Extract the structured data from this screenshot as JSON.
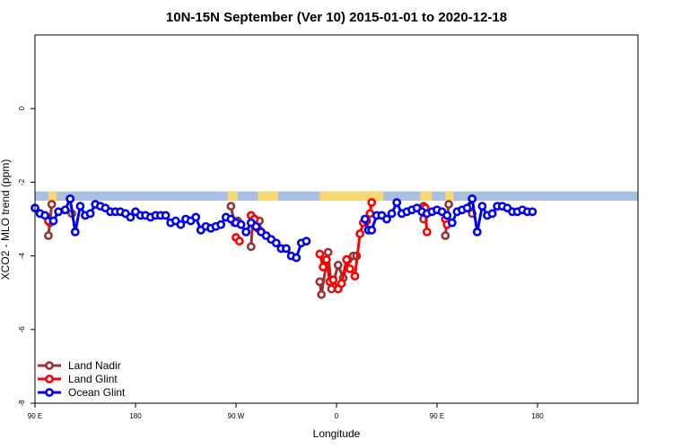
{
  "chart_data": {
    "type": "line",
    "title": "10N-15N September (Ver 10)   2015-01-01 to 2020-12-18",
    "xlabel": "Longitude",
    "ylabel": "XCO2 - MLO trend (ppm)",
    "xlim": [
      -60,
      300
    ],
    "ylim": [
      -8,
      2
    ],
    "x_ticks": [
      {
        "value": -60,
        "label": "90 E"
      },
      {
        "value": 0,
        "label": "180"
      },
      {
        "value": 60,
        "label": "90 W"
      },
      {
        "value": 120,
        "label": "0"
      },
      {
        "value": 180,
        "label": "90 E"
      },
      {
        "value": 240,
        "label": "180"
      }
    ],
    "y_ticks": [
      {
        "value": 0,
        "label": "0"
      },
      {
        "value": -2,
        "label": "-2"
      },
      {
        "value": -4,
        "label": "-4"
      },
      {
        "value": -6,
        "label": "-6"
      },
      {
        "value": -8,
        "label": "-8"
      }
    ],
    "legend_position": "bottom-left",
    "land_mask_band": {
      "y_range": [
        -2.5,
        -2.25
      ],
      "ocean_color": "#a9bfe2",
      "land_color": "#f7d774",
      "land_x": [
        [
          -52,
          -47
        ],
        [
          55,
          61
        ],
        [
          73,
          85
        ],
        [
          110,
          148
        ],
        [
          170,
          177
        ],
        [
          185,
          190
        ]
      ]
    },
    "series": [
      {
        "name": "Land Nadir",
        "color": "#993333",
        "segments": [
          [
            [
              -51,
              -3.1
            ],
            [
              -52,
              -3.45
            ],
            [
              -50,
              -2.6
            ]
          ],
          [
            [
              -38,
              -2.85
            ]
          ],
          [
            [
              57,
              -2.65
            ],
            [
              59,
              -3.1
            ],
            [
              61,
              -3.05
            ]
          ],
          [
            [
              69,
              -3.75
            ],
            [
              70,
              -3.05
            ],
            [
              74,
              -3.05
            ]
          ],
          [
            [
              110,
              -4.7
            ],
            [
              111,
              -5.05
            ],
            [
              115,
              -3.9
            ],
            [
              117,
              -4.9
            ],
            [
              121,
              -4.25
            ],
            [
              124,
              -4.6
            ],
            [
              127,
              -4.1
            ],
            [
              130,
              -4.0
            ],
            [
              132,
              -4.0
            ]
          ],
          [
            [
              172,
              -2.65
            ],
            [
              172,
              -3.0
            ]
          ],
          [
            [
              185,
              -3.45
            ],
            [
              187,
              -2.6
            ]
          ],
          [
            [
              201,
              -2.85
            ]
          ]
        ]
      },
      {
        "name": "Land Glint",
        "color": "#ff0000",
        "segments": [
          [
            [
              -52,
              -3.05
            ]
          ],
          [
            [
              60,
              -3.5
            ],
            [
              62,
              -3.6
            ]
          ],
          [
            [
              69,
              -2.9
            ],
            [
              71,
              -3.0
            ],
            [
              73,
              -3.25
            ]
          ],
          [
            [
              110,
              -3.95
            ],
            [
              112,
              -4.3
            ],
            [
              114,
              -4.1
            ],
            [
              116,
              -4.7
            ],
            [
              118,
              -4.65
            ],
            [
              121,
              -4.9
            ],
            [
              123,
              -4.75
            ],
            [
              126,
              -4.1
            ],
            [
              128,
              -4.35
            ],
            [
              131,
              -4.55
            ],
            [
              134,
              -3.4
            ],
            [
              136,
              -3.1
            ],
            [
              138,
              -3.05
            ],
            [
              140,
              -2.85
            ],
            [
              141,
              -2.55
            ]
          ],
          [
            [
              173,
              -2.7
            ],
            [
              174,
              -3.35
            ]
          ],
          [
            [
              185,
              -3.0
            ],
            [
              186,
              -3.15
            ]
          ],
          [
            [
              200,
              -2.65
            ]
          ]
        ]
      },
      {
        "name": "Ocean Glint",
        "color": "#0000ee",
        "segments": [
          [
            [
              -60,
              -2.7
            ],
            [
              -57,
              -2.85
            ],
            [
              -54,
              -2.9
            ],
            [
              -49,
              -3.05
            ],
            [
              -46,
              -2.8
            ],
            [
              -42,
              -2.75
            ],
            [
              -39,
              -2.45
            ],
            [
              -36,
              -3.35
            ],
            [
              -33,
              -2.65
            ],
            [
              -30,
              -2.9
            ],
            [
              -27,
              -2.85
            ],
            [
              -24,
              -2.6
            ],
            [
              -21,
              -2.65
            ],
            [
              -18,
              -2.7
            ],
            [
              -15,
              -2.8
            ],
            [
              -12,
              -2.8
            ],
            [
              -9,
              -2.8
            ],
            [
              -6,
              -2.85
            ],
            [
              -3,
              -2.95
            ],
            [
              0,
              -2.8
            ],
            [
              3,
              -2.9
            ],
            [
              6,
              -2.9
            ],
            [
              9,
              -2.95
            ],
            [
              12,
              -2.9
            ],
            [
              15,
              -2.9
            ],
            [
              18,
              -2.9
            ],
            [
              21,
              -3.1
            ],
            [
              24,
              -3.05
            ],
            [
              27,
              -3.15
            ],
            [
              30,
              -3.0
            ],
            [
              33,
              -3.05
            ],
            [
              36,
              -2.95
            ],
            [
              39,
              -3.3
            ],
            [
              42,
              -3.2
            ],
            [
              45,
              -3.25
            ],
            [
              48,
              -3.2
            ],
            [
              51,
              -3.15
            ],
            [
              54,
              -2.95
            ],
            [
              57,
              -3.0
            ],
            [
              60,
              -3.1
            ],
            [
              63,
              -3.15
            ],
            [
              66,
              -3.35
            ],
            [
              69,
              -3.1
            ],
            [
              72,
              -3.2
            ],
            [
              75,
              -3.35
            ],
            [
              78,
              -3.45
            ],
            [
              81,
              -3.55
            ],
            [
              84,
              -3.65
            ],
            [
              87,
              -3.8
            ],
            [
              90,
              -3.8
            ],
            [
              93,
              -4.0
            ],
            [
              96,
              -4.05
            ],
            [
              99,
              -3.65
            ],
            [
              102,
              -3.6
            ]
          ],
          [
            [
              137,
              -3.0
            ],
            [
              139,
              -3.3
            ],
            [
              141,
              -3.3
            ],
            [
              144,
              -2.9
            ],
            [
              147,
              -2.9
            ],
            [
              150,
              -3.0
            ],
            [
              153,
              -2.85
            ],
            [
              156,
              -2.55
            ],
            [
              159,
              -2.85
            ],
            [
              162,
              -2.8
            ],
            [
              165,
              -2.75
            ],
            [
              168,
              -2.7
            ],
            [
              171,
              -2.8
            ],
            [
              174,
              -2.85
            ],
            [
              177,
              -2.8
            ],
            [
              180,
              -2.75
            ],
            [
              183,
              -2.8
            ],
            [
              186,
              -2.9
            ],
            [
              189,
              -3.1
            ],
            [
              192,
              -2.8
            ],
            [
              195,
              -2.75
            ],
            [
              198,
              -2.7
            ],
            [
              201,
              -2.45
            ],
            [
              204,
              -3.35
            ],
            [
              207,
              -2.65
            ],
            [
              210,
              -2.9
            ],
            [
              213,
              -2.85
            ],
            [
              216,
              -2.65
            ],
            [
              219,
              -2.65
            ],
            [
              222,
              -2.7
            ],
            [
              225,
              -2.8
            ],
            [
              228,
              -2.8
            ],
            [
              231,
              -2.75
            ],
            [
              234,
              -2.8
            ],
            [
              237,
              -2.8
            ]
          ]
        ]
      }
    ]
  }
}
